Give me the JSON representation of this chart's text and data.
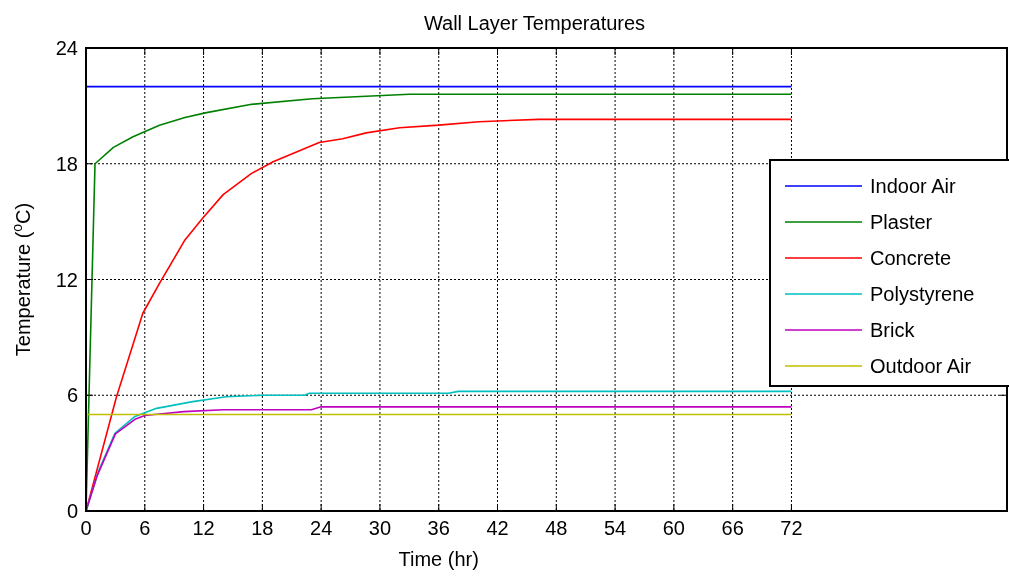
{
  "chart_data": {
    "type": "line",
    "title": "Wall Layer Temperatures",
    "xlabel": "Time (hr)",
    "ylabel": "Temperature ($^{o}$C)",
    "xlim": [
      0,
      94
    ],
    "xticks": [
      0,
      6,
      12,
      18,
      24,
      30,
      36,
      42,
      48,
      54,
      60,
      66,
      72
    ],
    "ylim": [
      0,
      24
    ],
    "yticks": [
      0,
      6,
      12,
      18,
      24
    ],
    "grid": true,
    "legend": "right",
    "line_style": "solid",
    "series": [
      {
        "name": "Indoor Air",
        "color": "#0000ff",
        "x": [
          0,
          72
        ],
        "values": [
          22,
          22
        ]
      },
      {
        "name": "Plaster",
        "color": "#008000",
        "x": [
          0,
          0.92,
          2.8,
          4.8,
          7.5,
          10.1,
          12.3,
          16.9,
          23.1,
          33,
          72
        ],
        "values": [
          0,
          18,
          18.85,
          19.4,
          20,
          20.4,
          20.65,
          21.08,
          21.37,
          21.6,
          21.6
        ]
      },
      {
        "name": "Concrete",
        "color": "#ff0000",
        "x": [
          0,
          3.1,
          5.8,
          7.5,
          10.1,
          11.9,
          14,
          16.9,
          19.1,
          23.8,
          26.2,
          28.6,
          32,
          36,
          40.1,
          46.2,
          72
        ],
        "values": [
          0,
          5.9,
          10.25,
          11.8,
          14.05,
          15.17,
          16.4,
          17.5,
          18.1,
          19.1,
          19.3,
          19.6,
          19.87,
          20,
          20.18,
          20.3,
          20.3
        ]
      },
      {
        "name": "Polystyrene",
        "color": "#00bfbf",
        "x": [
          0,
          1.3,
          2.95,
          5,
          7.2,
          10.9,
          14.3,
          18,
          22.3,
          22.8,
          37,
          38,
          72
        ],
        "values": [
          0,
          2.1,
          4.03,
          4.9,
          5.32,
          5.67,
          5.92,
          6,
          6,
          6.1,
          6.1,
          6.2,
          6.2
        ]
      },
      {
        "name": "Brick",
        "color": "#bf00bf",
        "x": [
          0,
          1.1,
          3,
          5,
          6,
          8,
          10,
          14,
          23,
          24,
          72
        ],
        "values": [
          0,
          1.78,
          4,
          4.75,
          4.95,
          5.05,
          5.15,
          5.25,
          5.25,
          5.4,
          5.4
        ]
      },
      {
        "name": "Outdoor Air",
        "color": "#bfbf00",
        "x": [
          0,
          72
        ],
        "values": [
          5,
          5
        ]
      }
    ]
  }
}
